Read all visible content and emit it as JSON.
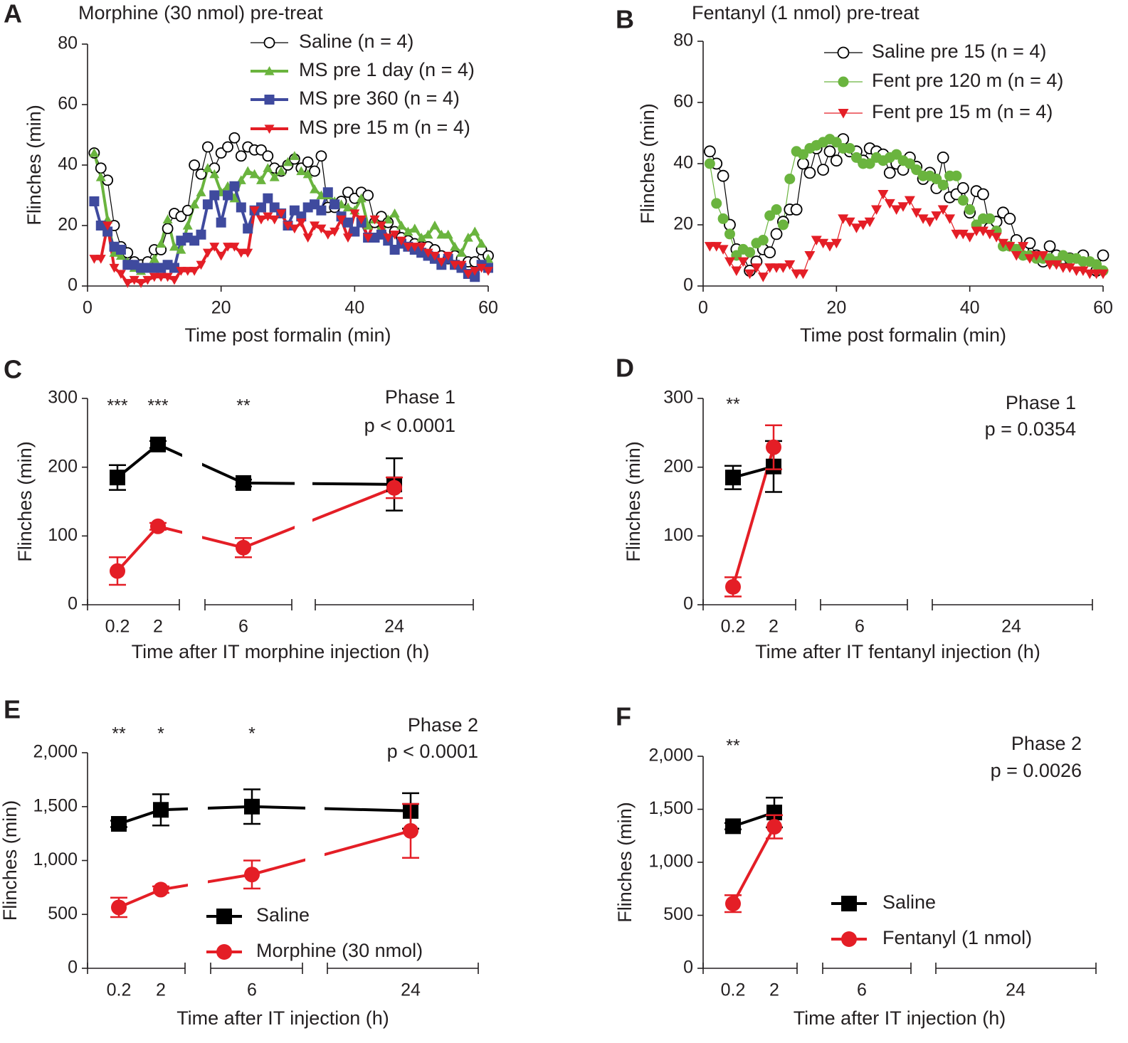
{
  "chart_data": [
    {
      "type": "line",
      "label": "A",
      "title": "Morphine (30 nmol) pre-treat",
      "xlabel": "Time post formalin (min)",
      "ylabel": "Flinches (min)",
      "xlim": [
        0,
        60
      ],
      "xticks": [
        0,
        20,
        40,
        60
      ],
      "ylim": [
        0,
        80
      ],
      "yticks": [
        0,
        20,
        40,
        60,
        80
      ],
      "x": [
        1,
        2,
        3,
        4,
        5,
        6,
        7,
        8,
        9,
        10,
        11,
        12,
        13,
        14,
        15,
        16,
        17,
        18,
        19,
        20,
        21,
        22,
        23,
        24,
        25,
        26,
        27,
        28,
        29,
        30,
        31,
        32,
        33,
        34,
        35,
        36,
        37,
        38,
        39,
        40,
        41,
        42,
        43,
        44,
        45,
        46,
        47,
        48,
        49,
        50,
        51,
        52,
        53,
        54,
        55,
        56,
        57,
        58,
        59,
        60
      ],
      "series": [
        {
          "name": "Saline (n = 4)",
          "color": "#000000",
          "marker": "circle-open",
          "line_width": 1.2,
          "values": [
            44,
            39,
            35,
            20,
            13,
            11,
            8,
            7,
            8,
            12,
            12,
            19,
            24,
            23,
            25,
            40,
            37,
            46,
            39,
            44,
            46,
            49,
            43,
            46,
            45,
            45,
            43,
            39,
            38,
            40,
            42,
            39,
            41,
            38,
            43,
            26,
            26,
            28,
            31,
            29,
            31,
            30,
            21,
            23,
            21,
            18,
            16,
            15,
            14,
            13,
            13,
            12,
            10,
            9,
            10,
            9,
            8,
            8,
            12,
            10
          ]
        },
        {
          "name": "MS pre 1 day (n = 4)",
          "color": "#6ab43e",
          "marker": "triangle-up",
          "line_width": 4,
          "values": [
            44,
            36,
            22,
            11,
            10,
            8,
            6,
            5,
            6,
            9,
            14,
            22,
            13,
            12,
            20,
            27,
            31,
            39,
            37,
            31,
            33,
            29,
            35,
            38,
            37,
            35,
            39,
            36,
            38,
            41,
            43,
            38,
            37,
            32,
            30,
            30,
            28,
            27,
            26,
            25,
            29,
            20,
            22,
            17,
            22,
            24,
            20,
            18,
            19,
            16,
            17,
            20,
            17,
            17,
            13,
            11,
            16,
            18,
            14,
            9
          ]
        },
        {
          "name": "MS pre 360 (n = 4)",
          "color": "#3f4a9e",
          "marker": "square",
          "line_width": 4,
          "values": [
            28,
            20,
            18,
            13,
            12,
            7,
            7,
            6,
            6,
            6,
            6,
            7,
            6,
            15,
            16,
            15,
            17,
            27,
            30,
            21,
            30,
            33,
            26,
            19,
            25,
            26,
            29,
            26,
            24,
            20,
            25,
            23,
            26,
            27,
            25,
            31,
            27,
            23,
            21,
            18,
            21,
            16,
            16,
            17,
            15,
            12,
            14,
            13,
            12,
            11,
            10,
            9,
            7,
            9,
            7,
            6,
            4,
            3,
            7,
            6
          ]
        },
        {
          "name": "MS pre 15 m (n = 4)",
          "color": "#e41e26",
          "marker": "triangle-down",
          "line_width": 4,
          "values": [
            9,
            9,
            20,
            6,
            4,
            1,
            2,
            1,
            2,
            3,
            3,
            3,
            2,
            5,
            5,
            5,
            7,
            11,
            13,
            10,
            13,
            13,
            11,
            11,
            25,
            22,
            23,
            22,
            24,
            20,
            19,
            21,
            16,
            20,
            19,
            17,
            18,
            22,
            16,
            24,
            22,
            16,
            22,
            20,
            16,
            17,
            15,
            13,
            13,
            13,
            11,
            10,
            8,
            10,
            7,
            7,
            4,
            5,
            6,
            5
          ]
        }
      ]
    },
    {
      "type": "line",
      "label": "B",
      "title": "Fentanyl (1 nmol) pre-treat",
      "xlabel": "Time post formalin (min)",
      "ylabel": "Flinches (min)",
      "xlim": [
        0,
        60
      ],
      "xticks": [
        0,
        20,
        40,
        60
      ],
      "ylim": [
        0,
        80
      ],
      "yticks": [
        0,
        20,
        40,
        60,
        80
      ],
      "x": [
        1,
        2,
        3,
        4,
        5,
        6,
        7,
        8,
        9,
        10,
        11,
        12,
        13,
        14,
        15,
        16,
        17,
        18,
        19,
        20,
        21,
        22,
        23,
        24,
        25,
        26,
        27,
        28,
        29,
        30,
        31,
        32,
        33,
        34,
        35,
        36,
        37,
        38,
        39,
        40,
        41,
        42,
        43,
        44,
        45,
        46,
        47,
        48,
        49,
        50,
        51,
        52,
        53,
        54,
        55,
        56,
        57,
        58,
        59,
        60
      ],
      "series": [
        {
          "name": "Saline pre 15 (n =  4)",
          "color": "#000000",
          "marker": "circle-open",
          "line_width": 1.2,
          "values": [
            44,
            40,
            36,
            20,
            12,
            10,
            5,
            8,
            12,
            11,
            17,
            21,
            25,
            25,
            40,
            37,
            45,
            38,
            44,
            41,
            48,
            44,
            44,
            41,
            45,
            44,
            43,
            37,
            40,
            38,
            42,
            39,
            35,
            37,
            32,
            42,
            29,
            30,
            32,
            24,
            31,
            30,
            19,
            21,
            24,
            22,
            15,
            12,
            14,
            10,
            8,
            13,
            10,
            9,
            9,
            7,
            10,
            6,
            5,
            10
          ]
        },
        {
          "name": "Fent  pre 120 m (n = 4)",
          "color": "#6ab43e",
          "marker": "circle",
          "line_width": 1.2,
          "values": [
            40,
            27,
            22,
            17,
            10,
            12,
            11,
            14,
            15,
            23,
            25,
            20,
            35,
            44,
            43,
            45,
            46,
            47,
            48,
            47,
            45,
            45,
            42,
            40,
            40,
            42,
            41,
            42,
            43,
            41,
            40,
            38,
            36,
            36,
            35,
            33,
            36,
            36,
            28,
            25,
            20,
            22,
            22,
            18,
            13,
            13,
            12,
            10,
            10,
            9,
            9,
            9,
            8,
            10,
            9,
            9,
            8,
            8,
            7,
            5
          ]
        },
        {
          "name": "Fent pre 15 m (n = 4)",
          "color": "#e41e26",
          "marker": "triangle-down",
          "line_width": 1.2,
          "values": [
            13,
            13,
            12,
            8,
            5,
            8,
            4,
            6,
            3,
            6,
            6,
            6,
            7,
            4,
            4,
            10,
            15,
            14,
            13,
            14,
            22,
            21,
            19,
            20,
            21,
            25,
            30,
            27,
            25,
            26,
            28,
            24,
            22,
            21,
            23,
            25,
            22,
            17,
            17,
            16,
            18,
            18,
            17,
            16,
            14,
            13,
            10,
            13,
            9,
            10,
            10,
            7,
            7,
            6,
            6,
            5,
            5,
            4,
            4,
            4
          ]
        }
      ]
    },
    {
      "type": "errorbar",
      "label": "C",
      "xlabel": "Time after IT morphine injection (h)",
      "ylabel": "Flinches (min)",
      "categories": [
        "0.2",
        "2",
        "6",
        "24"
      ],
      "ylim": [
        0,
        300
      ],
      "yticks": [
        0,
        100,
        200,
        300
      ],
      "significance": [
        "***",
        "***",
        "**",
        null
      ],
      "phase": "Phase 1",
      "p_value": "p < 0.0001",
      "series": [
        {
          "color": "#000000",
          "marker": "square",
          "values": [
            185,
            233,
            177,
            175
          ],
          "errors": [
            18,
            5,
            5,
            38
          ]
        },
        {
          "color": "#e41e26",
          "marker": "circle",
          "values": [
            49,
            114,
            83,
            170
          ],
          "errors": [
            20,
            5,
            14,
            15
          ]
        }
      ]
    },
    {
      "type": "errorbar",
      "label": "D",
      "xlabel": "Time after IT fentanyl injection (h)",
      "ylabel": "Flinches (min)",
      "categories": [
        "0.2",
        "2",
        "6",
        "24"
      ],
      "ylim": [
        0,
        300
      ],
      "yticks": [
        0,
        100,
        200,
        300
      ],
      "significance": [
        "**",
        null,
        null,
        null
      ],
      "phase": "Phase 1",
      "p_value": "p = 0.0354",
      "series": [
        {
          "color": "#000000",
          "marker": "square",
          "values": [
            185,
            201,
            null,
            null
          ],
          "errors": [
            17,
            37,
            null,
            null
          ]
        },
        {
          "color": "#e41e26",
          "marker": "circle",
          "values": [
            26,
            229,
            null,
            null
          ],
          "errors": [
            14,
            32,
            null,
            null
          ]
        }
      ]
    },
    {
      "type": "errorbar",
      "label": "E",
      "xlabel": "Time after IT injection (h)",
      "ylabel": "Flinches (min)",
      "categories": [
        "0.2",
        "2",
        "6",
        "24"
      ],
      "ylim": [
        0,
        2000
      ],
      "yticks": [
        0,
        500,
        {
          "value": 1000,
          "label": "1,000"
        },
        {
          "value": 1500,
          "label": "1,500"
        },
        {
          "value": 2000,
          "label": "2,000"
        }
      ],
      "significance": [
        "**",
        "*",
        "*",
        null
      ],
      "phase": "Phase 2",
      "p_value": "p < 0.0001",
      "series": [
        {
          "name": "Saline",
          "color": "#000000",
          "marker": "square",
          "values": [
            1340,
            1470,
            1500,
            1460
          ],
          "errors": [
            30,
            145,
            160,
            165
          ]
        },
        {
          "name": "Morphine (30 nmol)",
          "color": "#e41e26",
          "marker": "circle",
          "values": [
            565,
            730,
            870,
            1275
          ],
          "errors": [
            90,
            30,
            130,
            250
          ]
        }
      ]
    },
    {
      "type": "errorbar",
      "label": "F",
      "xlabel": "Time after IT injection (h)",
      "ylabel": "Flinches (min)",
      "categories": [
        "0.2",
        "2",
        "6",
        "24"
      ],
      "ylim": [
        0,
        2000
      ],
      "yticks": [
        0,
        500,
        {
          "value": 1000,
          "label": "1,000"
        },
        {
          "value": 1500,
          "label": "1,500"
        },
        {
          "value": 2000,
          "label": "2,000"
        }
      ],
      "significance": [
        "**",
        null,
        null,
        null
      ],
      "phase": "Phase 2",
      "p_value": "p = 0.0026",
      "series": [
        {
          "name": "Saline",
          "color": "#000000",
          "marker": "square",
          "values": [
            1340,
            1470,
            null,
            null
          ],
          "errors": [
            30,
            140,
            null,
            null
          ]
        },
        {
          "name": "Fentanyl (1 nmol)",
          "color": "#e41e26",
          "marker": "circle",
          "values": [
            610,
            1335,
            null,
            null
          ],
          "errors": [
            80,
            110,
            null,
            null
          ]
        }
      ]
    }
  ]
}
